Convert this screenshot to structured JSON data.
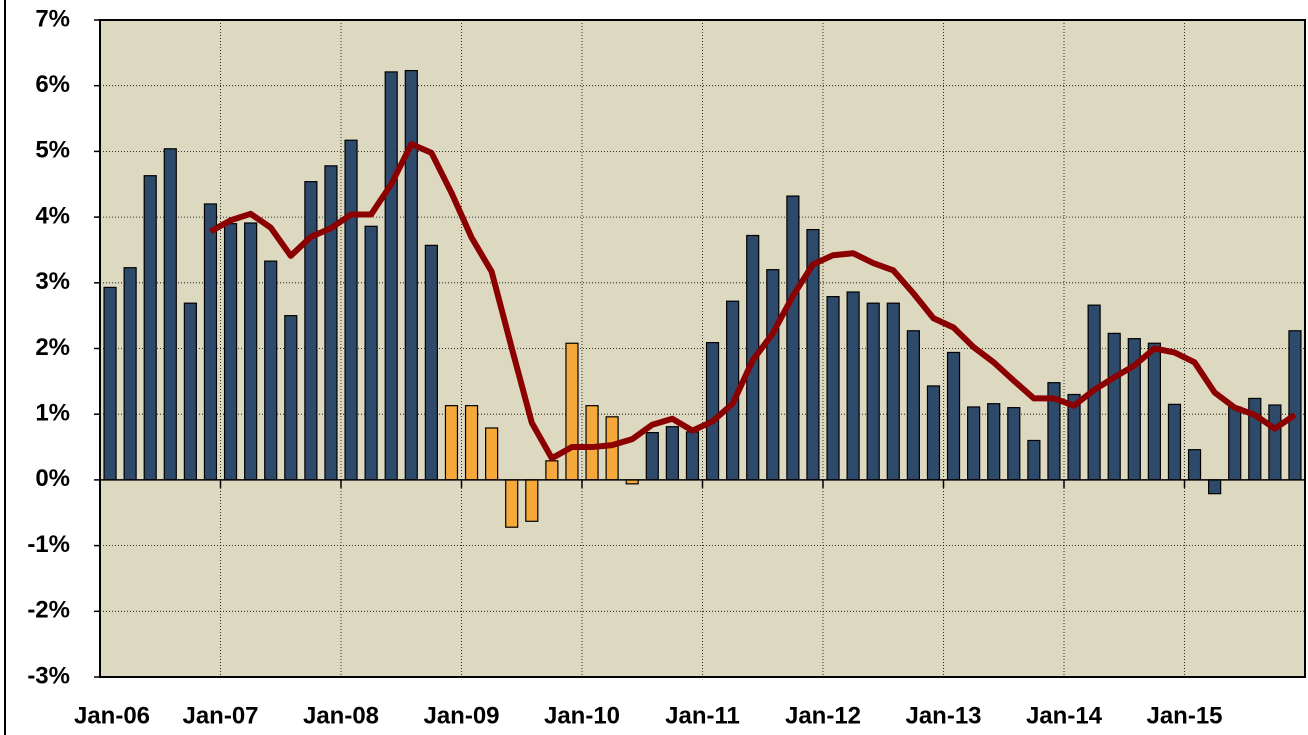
{
  "chart_data": {
    "type": "bar_line",
    "categories": [
      "Jan-06",
      null,
      null,
      null,
      null,
      null,
      "Jan-07",
      null,
      null,
      null,
      null,
      null,
      "Jan-08",
      null,
      null,
      null,
      null,
      null,
      "Jan-09",
      null,
      null,
      null,
      null,
      null,
      "Jan-10",
      null,
      null,
      null,
      null,
      null,
      "Jan-11",
      null,
      null,
      null,
      null,
      null,
      "Jan-12",
      null,
      null,
      null,
      null,
      null,
      "Jan-13",
      null,
      null,
      null,
      null,
      null,
      "Jan-14",
      null,
      null,
      null,
      null,
      null,
      "Jan-15",
      null,
      null,
      null,
      null,
      null
    ],
    "series": [
      {
        "type": "bar",
        "color": "#2e4a6b",
        "values": [
          2.93,
          3.23,
          4.63,
          5.04,
          2.69,
          4.2,
          3.9,
          3.91,
          3.33,
          2.5,
          4.54,
          4.78,
          5.17,
          3.86,
          6.21,
          6.23,
          3.57,
          null,
          null,
          null,
          null,
          null,
          null,
          null,
          null,
          null,
          null,
          0.72,
          0.81,
          0.73,
          2.09,
          2.72,
          3.72,
          3.2,
          4.32,
          3.81,
          2.79,
          2.86,
          2.69,
          2.69,
          2.27,
          1.43,
          1.94,
          1.11,
          1.16,
          1.1,
          0.6,
          1.48,
          1.3,
          2.66,
          2.23,
          2.15,
          2.08,
          1.15,
          0.46,
          -0.21,
          1.11,
          1.24,
          1.14,
          2.27
        ]
      },
      {
        "type": "bar",
        "color": "#f5a93a",
        "values": [
          null,
          null,
          null,
          null,
          null,
          null,
          null,
          null,
          null,
          null,
          null,
          null,
          null,
          null,
          null,
          null,
          null,
          1.13,
          1.13,
          0.79,
          -0.72,
          -0.63,
          0.29,
          2.08,
          1.13,
          0.96,
          -0.06,
          null,
          null,
          null,
          null,
          null,
          null,
          null,
          null,
          null,
          null,
          null,
          null,
          null,
          null,
          null,
          null,
          null,
          null,
          null,
          null,
          null,
          null,
          null,
          null,
          null,
          null,
          null,
          null,
          null,
          null,
          null,
          null,
          null
        ]
      },
      {
        "type": "line",
        "color": "#8b0000",
        "values": [
          null,
          null,
          null,
          null,
          null,
          3.78,
          3.95,
          4.05,
          3.84,
          3.41,
          3.7,
          3.83,
          4.04,
          4.04,
          4.5,
          5.11,
          4.98,
          4.37,
          3.69,
          3.17,
          2.01,
          0.87,
          0.33,
          0.5,
          0.5,
          0.53,
          0.62,
          0.84,
          0.93,
          0.75,
          0.89,
          1.16,
          1.82,
          2.23,
          2.8,
          3.28,
          3.42,
          3.45,
          3.3,
          3.19,
          2.84,
          2.46,
          2.32,
          2.02,
          1.79,
          1.51,
          1.24,
          1.24,
          1.13,
          1.37,
          1.56,
          1.74,
          2.0,
          1.94,
          1.79,
          1.33,
          1.1,
          0.99,
          0.78,
          0.99
        ]
      }
    ],
    "ylim": [
      -3,
      7
    ],
    "yticks": [
      {
        "value": -3,
        "label": "-3%"
      },
      {
        "value": -2,
        "label": "-2%"
      },
      {
        "value": -1,
        "label": "-1%"
      },
      {
        "value": 0,
        "label": "0%"
      },
      {
        "value": 1,
        "label": "1%"
      },
      {
        "value": 2,
        "label": "2%"
      },
      {
        "value": 3,
        "label": "3%"
      },
      {
        "value": 4,
        "label": "4%"
      },
      {
        "value": 5,
        "label": "5%"
      },
      {
        "value": 6,
        "label": "6%"
      },
      {
        "value": 7,
        "label": "7%"
      }
    ],
    "grid": true,
    "background": "#ddd8c0"
  }
}
